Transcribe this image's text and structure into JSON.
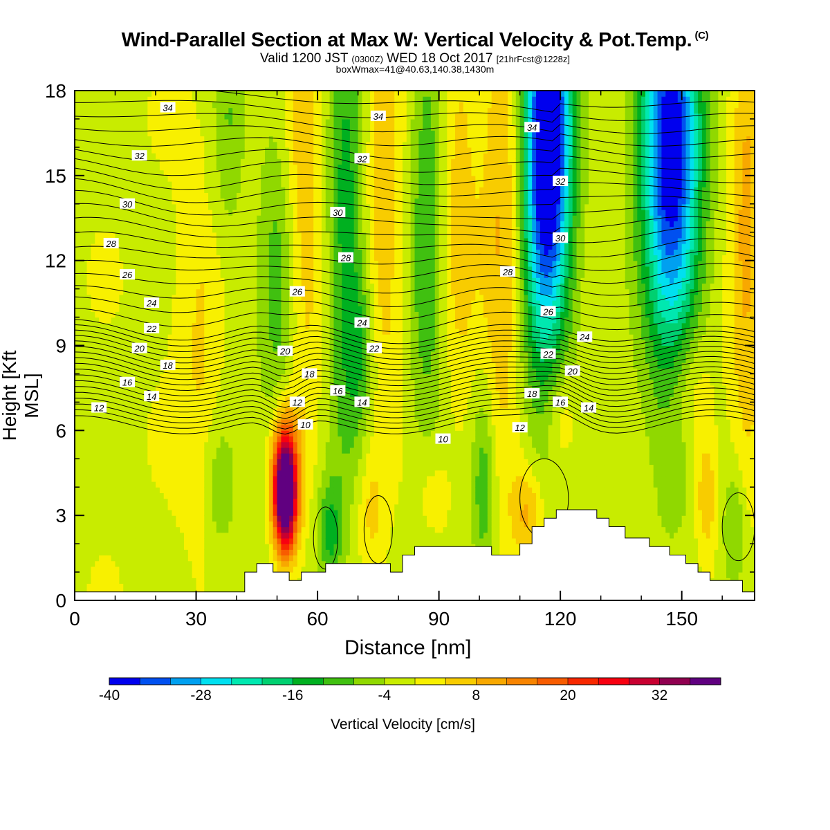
{
  "title": "Wind-Parallel Section at Max W: Vertical Velocity & Pot.Temp.",
  "title_mark": "(C)",
  "valid_parts": [
    "Valid 1200 JST ",
    "(0300Z)",
    " WED 18 Oct 2017 ",
    "[21hrFcst@1228z]"
  ],
  "subtitle": "boxWmax=41@40.63,140.38,1430m",
  "chart_data": {
    "type": "heatmap",
    "xlabel": "Distance [nm]",
    "ylabel": "Height [Kft MSL]",
    "xlim": [
      0,
      168
    ],
    "ylim": [
      0,
      18
    ],
    "xticks": [
      0,
      30,
      60,
      90,
      120,
      150
    ],
    "yticks": [
      0,
      3,
      6,
      9,
      12,
      15,
      18
    ],
    "field": "Vertical Velocity [cm/s]",
    "contour_field": "Potential Temperature",
    "colorbar": {
      "label": "Vertical Velocity [cm/s]",
      "ticks": [
        -40,
        -28,
        -16,
        -4,
        8,
        20,
        32
      ],
      "colors": [
        "#0000ee",
        "#0050f0",
        "#00a0f0",
        "#00e0f0",
        "#00e8b0",
        "#00d070",
        "#00b020",
        "#40c010",
        "#90d800",
        "#c8ec00",
        "#f8f000",
        "#f8cc00",
        "#f8a800",
        "#f88400",
        "#f85c00",
        "#f82800",
        "#f80010",
        "#c80030",
        "#900050",
        "#600080"
      ]
    },
    "terrain": [
      [
        0,
        0.3
      ],
      [
        42,
        0.3
      ],
      [
        42,
        1.0
      ],
      [
        45,
        1.0
      ],
      [
        45,
        1.3
      ],
      [
        49,
        1.3
      ],
      [
        49,
        1.0
      ],
      [
        53,
        1.0
      ],
      [
        53,
        0.7
      ],
      [
        56,
        0.7
      ],
      [
        56,
        1.0
      ],
      [
        62,
        1.0
      ],
      [
        62,
        1.3
      ],
      [
        78,
        1.3
      ],
      [
        78,
        1.0
      ],
      [
        81,
        1.0
      ],
      [
        81,
        1.6
      ],
      [
        84,
        1.6
      ],
      [
        84,
        1.9
      ],
      [
        103,
        1.9
      ],
      [
        103,
        1.6
      ],
      [
        110,
        1.6
      ],
      [
        110,
        2.0
      ],
      [
        113,
        2.0
      ],
      [
        113,
        2.6
      ],
      [
        116,
        2.6
      ],
      [
        116,
        2.9
      ],
      [
        119,
        2.9
      ],
      [
        119,
        3.2
      ],
      [
        129,
        3.2
      ],
      [
        129,
        2.9
      ],
      [
        132,
        2.9
      ],
      [
        132,
        2.6
      ],
      [
        136,
        2.6
      ],
      [
        136,
        2.2
      ],
      [
        142,
        2.2
      ],
      [
        142,
        1.9
      ],
      [
        147,
        1.9
      ],
      [
        147,
        1.6
      ],
      [
        151,
        1.6
      ],
      [
        151,
        1.3
      ],
      [
        154,
        1.3
      ],
      [
        154,
        1.0
      ],
      [
        157,
        1.0
      ],
      [
        157,
        0.7
      ],
      [
        165,
        0.7
      ],
      [
        165,
        0.3
      ],
      [
        168,
        0.3
      ]
    ],
    "updrafts": [
      {
        "x": 52,
        "y": 3.6,
        "sx": 2.0,
        "sy": 1.4,
        "amp": 44
      },
      {
        "x": 52,
        "y": 4.8,
        "sx": 2.5,
        "sy": 1.6,
        "amp": 18
      },
      {
        "x": 55,
        "y": 13.5,
        "sx": 4.5,
        "sy": 6,
        "amp": 12
      },
      {
        "x": 76,
        "y": 14,
        "sx": 3.5,
        "sy": 6,
        "amp": 9
      },
      {
        "x": 95,
        "y": 14,
        "sx": 3.0,
        "sy": 5,
        "amp": 8
      },
      {
        "x": 106,
        "y": 13,
        "sx": 4,
        "sy": 6,
        "amp": 11
      },
      {
        "x": 166,
        "y": 13,
        "sx": 3,
        "sy": 6,
        "amp": 11
      },
      {
        "x": 112,
        "y": 3.0,
        "sx": 3,
        "sy": 1.2,
        "amp": 11
      },
      {
        "x": 120,
        "y": 6.5,
        "sx": 3,
        "sy": 1.5,
        "amp": 8
      },
      {
        "x": 152,
        "y": 7.5,
        "sx": 4,
        "sy": 1.6,
        "amp": 9
      },
      {
        "x": 156,
        "y": 3.8,
        "sx": 2,
        "sy": 1.5,
        "amp": 10
      },
      {
        "x": 31,
        "y": 9,
        "sx": 4,
        "sy": 4,
        "amp": 5
      },
      {
        "x": 73,
        "y": 3.2,
        "sx": 2.5,
        "sy": 1.5,
        "amp": 6
      },
      {
        "x": 88,
        "y": 3.8,
        "sx": 3,
        "sy": 1.5,
        "amp": 5
      }
    ],
    "downdrafts": [
      {
        "x": 117,
        "y": 17,
        "sx": 4,
        "sy": 4,
        "amp": 38
      },
      {
        "x": 147,
        "y": 17,
        "sx": 5,
        "sy": 4,
        "amp": 30
      },
      {
        "x": 116,
        "y": 12,
        "sx": 4.5,
        "sy": 5,
        "amp": 16
      },
      {
        "x": 148,
        "y": 12,
        "sx": 5,
        "sy": 5,
        "amp": 16
      },
      {
        "x": 51,
        "y": 11.5,
        "sx": 3.5,
        "sy": 5,
        "amp": 14
      },
      {
        "x": 67,
        "y": 13,
        "sx": 3.5,
        "sy": 6,
        "amp": 13
      },
      {
        "x": 87,
        "y": 13,
        "sx": 3,
        "sy": 6,
        "amp": 10
      },
      {
        "x": 38,
        "y": 17,
        "sx": 2.5,
        "sy": 3,
        "amp": 6
      },
      {
        "x": 63,
        "y": 2.4,
        "sx": 2.2,
        "sy": 1.3,
        "amp": 12
      },
      {
        "x": 101,
        "y": 4,
        "sx": 2,
        "sy": 2.5,
        "amp": 10
      },
      {
        "x": 71,
        "y": 9,
        "sx": 2.5,
        "sy": 2,
        "amp": 8
      },
      {
        "x": 36,
        "y": 4,
        "sx": 2.5,
        "sy": 1.5,
        "amp": 6
      },
      {
        "x": 163,
        "y": 2.5,
        "sx": 2,
        "sy": 1.5,
        "amp": 8
      }
    ],
    "isentrope_labels": [
      {
        "text": "34",
        "x": 23,
        "y": 17.4
      },
      {
        "text": "34",
        "x": 75,
        "y": 17.1
      },
      {
        "text": "34",
        "x": 113,
        "y": 16.7
      },
      {
        "text": "32",
        "x": 16,
        "y": 15.7
      },
      {
        "text": "32",
        "x": 71,
        "y": 15.6
      },
      {
        "text": "32",
        "x": 120,
        "y": 14.8
      },
      {
        "text": "30",
        "x": 13,
        "y": 14.0
      },
      {
        "text": "30",
        "x": 65,
        "y": 13.7
      },
      {
        "text": "30",
        "x": 120,
        "y": 12.8
      },
      {
        "text": "28",
        "x": 9,
        "y": 12.6
      },
      {
        "text": "28",
        "x": 67,
        "y": 12.1
      },
      {
        "text": "28",
        "x": 107,
        "y": 11.6
      },
      {
        "text": "26",
        "x": 13,
        "y": 11.5
      },
      {
        "text": "26",
        "x": 55,
        "y": 10.9
      },
      {
        "text": "26",
        "x": 117,
        "y": 10.2
      },
      {
        "text": "24",
        "x": 19,
        "y": 10.5
      },
      {
        "text": "24",
        "x": 71,
        "y": 9.8
      },
      {
        "text": "24",
        "x": 126,
        "y": 9.3
      },
      {
        "text": "22",
        "x": 19,
        "y": 9.6
      },
      {
        "text": "22",
        "x": 74,
        "y": 8.9
      },
      {
        "text": "22",
        "x": 117,
        "y": 8.7
      },
      {
        "text": "20",
        "x": 16,
        "y": 8.9
      },
      {
        "text": "20",
        "x": 52,
        "y": 8.8
      },
      {
        "text": "20",
        "x": 123,
        "y": 8.1
      },
      {
        "text": "18",
        "x": 23,
        "y": 8.3
      },
      {
        "text": "18",
        "x": 58,
        "y": 8.0
      },
      {
        "text": "18",
        "x": 113,
        "y": 7.3
      },
      {
        "text": "16",
        "x": 13,
        "y": 7.7
      },
      {
        "text": "16",
        "x": 65,
        "y": 7.4
      },
      {
        "text": "16",
        "x": 120,
        "y": 7.0
      },
      {
        "text": "14",
        "x": 19,
        "y": 7.2
      },
      {
        "text": "14",
        "x": 71,
        "y": 7.0
      },
      {
        "text": "14",
        "x": 127,
        "y": 6.8
      },
      {
        "text": "12",
        "x": 6,
        "y": 6.8
      },
      {
        "text": "12",
        "x": 55,
        "y": 7.0
      },
      {
        "text": "12",
        "x": 110,
        "y": 6.1
      },
      {
        "text": "10",
        "x": 57,
        "y": 6.2
      },
      {
        "text": "10",
        "x": 91,
        "y": 5.7
      }
    ]
  }
}
